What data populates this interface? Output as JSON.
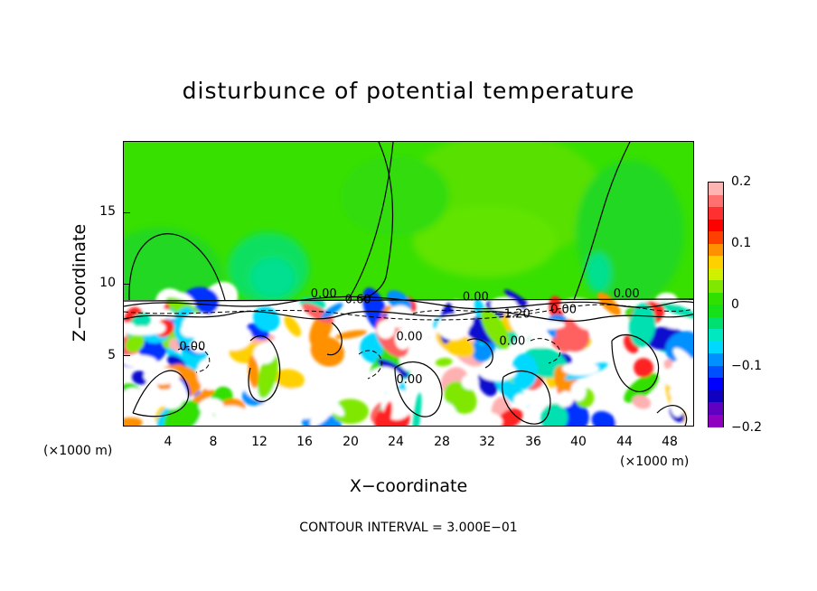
{
  "chart_data": {
    "type": "heatmap",
    "title": "disturbunce of potential temperature",
    "xlabel": "X−coordinate",
    "ylabel": "Z−coordinate",
    "x_unit": "(×1000 m)",
    "x_ticks": [
      "4",
      "8",
      "12",
      "16",
      "20",
      "24",
      "28",
      "32",
      "36",
      "40",
      "44",
      "48"
    ],
    "x_tick_values": [
      4,
      8,
      12,
      16,
      20,
      24,
      28,
      32,
      36,
      40,
      44,
      48
    ],
    "xlim": [
      0,
      50
    ],
    "y_ticks": [
      "5",
      "10",
      "15"
    ],
    "y_tick_values": [
      5,
      10,
      15
    ],
    "ylim": [
      0,
      20
    ],
    "contour_labels": [
      {
        "text": "0.00",
        "x": 17.5,
        "y": 9.1
      },
      {
        "text": "0.60",
        "x": 20.5,
        "y": 8.7
      },
      {
        "text": "0.00",
        "x": 30.8,
        "y": 8.9
      },
      {
        "text": "−1.20",
        "x": 34.0,
        "y": 7.7
      },
      {
        "text": "0.00",
        "x": 38.5,
        "y": 8.0
      },
      {
        "text": "0.00",
        "x": 44.0,
        "y": 9.1
      },
      {
        "text": "0.00",
        "x": 6.0,
        "y": 5.4
      },
      {
        "text": "0.00",
        "x": 25.0,
        "y": 6.1
      },
      {
        "text": "0.00",
        "x": 34.0,
        "y": 5.8
      },
      {
        "text": "0.00",
        "x": 25.0,
        "y": 3.1
      }
    ],
    "colorbar": {
      "ticks": [
        "0.2",
        "0.1",
        "0",
        "−0.1",
        "−0.2"
      ],
      "tick_values": [
        0.2,
        0.1,
        0,
        -0.1,
        -0.2
      ],
      "range": [
        -0.2,
        0.2
      ],
      "colors_top_to_bottom": [
        "#ffb4b4",
        "#ff7070",
        "#ff3030",
        "#ff0000",
        "#ff4000",
        "#ff9000",
        "#ffd000",
        "#d0f000",
        "#80e800",
        "#30e000",
        "#18e018",
        "#00e070",
        "#00e8c0",
        "#00d8ff",
        "#0090ff",
        "#0050ff",
        "#0000ff",
        "#1000c0",
        "#6000c0",
        "#9000c0"
      ]
    },
    "contour_interval": "CONTOUR INTERVAL = 3.000E−01"
  }
}
